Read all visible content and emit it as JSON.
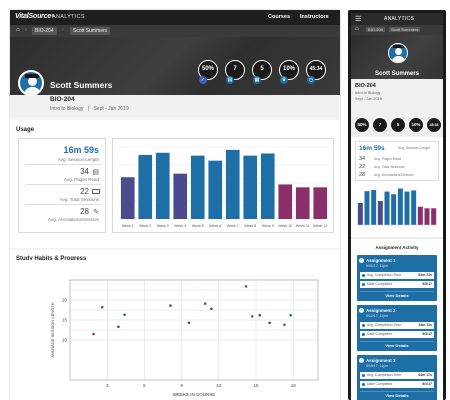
{
  "app": {
    "brand": "VitalSource",
    "brand_reg": "®",
    "section": "ANALYTICS"
  },
  "nav": {
    "courses": "Courses",
    "instructors": "Instructors"
  },
  "breadcrumb": {
    "course": "BIO-204",
    "student": "Scott Summers"
  },
  "student": {
    "name": "Scott Summers",
    "course_code": "BIO-204",
    "course_name": "Intro to Biology",
    "term": "Sept - Jan 2019",
    "separator": "|"
  },
  "header_stats": [
    {
      "value": "50%",
      "icon": "check-icon",
      "color": "#3a5fc0"
    },
    {
      "value": "7",
      "icon": "book-icon",
      "color": "#1d6fa5"
    },
    {
      "value": "5",
      "icon": "calendar-icon",
      "color": "#1d6fa5"
    },
    {
      "value": "10%",
      "icon": "trophy-icon",
      "color": "#1d6fa5"
    },
    {
      "value": "45:34",
      "icon": "clock-icon",
      "color": "#1d6fa5"
    }
  ],
  "usage": {
    "title": "Usage",
    "session_length": "16m 59s",
    "session_length_label": "Avg. Session Length",
    "pages_read": "34",
    "pages_read_label": "Avg. Pages Read",
    "total_sessions": "22",
    "total_sessions_label": "Avg. Total Sessions",
    "annotations": "28",
    "annotations_label": "Avg. Annotations/Session"
  },
  "chart_data": [
    {
      "type": "bar",
      "categories": [
        "Week 1",
        "Week 2",
        "Week 3",
        "Week 4",
        "Week 5",
        "Week 6",
        "Week 7",
        "Week 8",
        "Week 9",
        "Week 10",
        "Week 11",
        "Week 12"
      ],
      "values": [
        58,
        89,
        92,
        63,
        88,
        81,
        96,
        88,
        91,
        48,
        44,
        44
      ],
      "colors": [
        "#4a4a8c",
        "#1d6fa5",
        "#1d6fa5",
        "#4a4a8c",
        "#1d6fa5",
        "#1d6fa5",
        "#1d6fa5",
        "#1d6fa5",
        "#1d6fa5",
        "#8a2f6a",
        "#8a2f6a",
        "#8a2f6a"
      ],
      "ylim": [
        0,
        100
      ],
      "grid": true
    },
    {
      "type": "scatter",
      "title": "Study Habits & Progress",
      "xlabel": "WEEKS IN COURSE",
      "ylabel": "AVERAGE SESSION LENGTH",
      "xlim": [
        0,
        20
      ],
      "ylim": [
        0,
        25
      ],
      "xticks": [
        3,
        6,
        9,
        12,
        15,
        18
      ],
      "yticks": [
        10,
        12.5,
        15,
        17.5,
        20,
        22.5
      ],
      "ytick_labels": [
        "10",
        "",
        "15",
        "",
        "20",
        ""
      ],
      "points": [
        {
          "x": 1.9,
          "y": 11.5,
          "color": "#8a2f6a"
        },
        {
          "x": 2.6,
          "y": 18.2,
          "color": "#1d6fa5"
        },
        {
          "x": 3.9,
          "y": 13.3,
          "color": "#8a2f6a"
        },
        {
          "x": 4.4,
          "y": 16.3,
          "color": "#1d6fa5"
        },
        {
          "x": 8.1,
          "y": 18.6,
          "color": "#4a4a8c"
        },
        {
          "x": 9.6,
          "y": 14.3,
          "color": "#4a4a8c"
        },
        {
          "x": 10.9,
          "y": 19.1,
          "color": "#1d6fa5"
        },
        {
          "x": 11.4,
          "y": 17.8,
          "color": "#4a4a8c"
        },
        {
          "x": 14.2,
          "y": 23.4,
          "color": "#1d6fa5"
        },
        {
          "x": 14.7,
          "y": 15.9,
          "color": "#1d6fa5"
        },
        {
          "x": 15.3,
          "y": 16.2,
          "color": "#4a4a8c"
        },
        {
          "x": 16.1,
          "y": 14.3,
          "color": "#8a2f6a"
        },
        {
          "x": 17.3,
          "y": 13.8,
          "color": "#1d6fa5"
        },
        {
          "x": 17.8,
          "y": 16.2,
          "color": "#1d6fa5"
        }
      ]
    }
  ],
  "mobile": {
    "activity_title": "Assignment Activity",
    "assignments": [
      {
        "title": "Assignment 1",
        "date": "9/01/17, 11pm",
        "time_label": "Avg. Completion Time",
        "time_value": "54m 21s",
        "date_label": "Date Completed",
        "date_value": "9/5/17",
        "button": "View Details"
      },
      {
        "title": "Assignment 2",
        "date": "9/12/17, 11pm",
        "time_label": "Avg. Completion Time",
        "time_value": "34m 11s",
        "date_label": "Date Completed",
        "date_value": "9/1/17",
        "button": "View Details"
      },
      {
        "title": "Assignment 3",
        "date": "9/19/17, 11pm",
        "time_label": "Avg. Completion Time",
        "time_value": "44m 17s",
        "date_label": "Date Completed",
        "date_value": "9/1/17",
        "button": "View Details"
      }
    ]
  }
}
